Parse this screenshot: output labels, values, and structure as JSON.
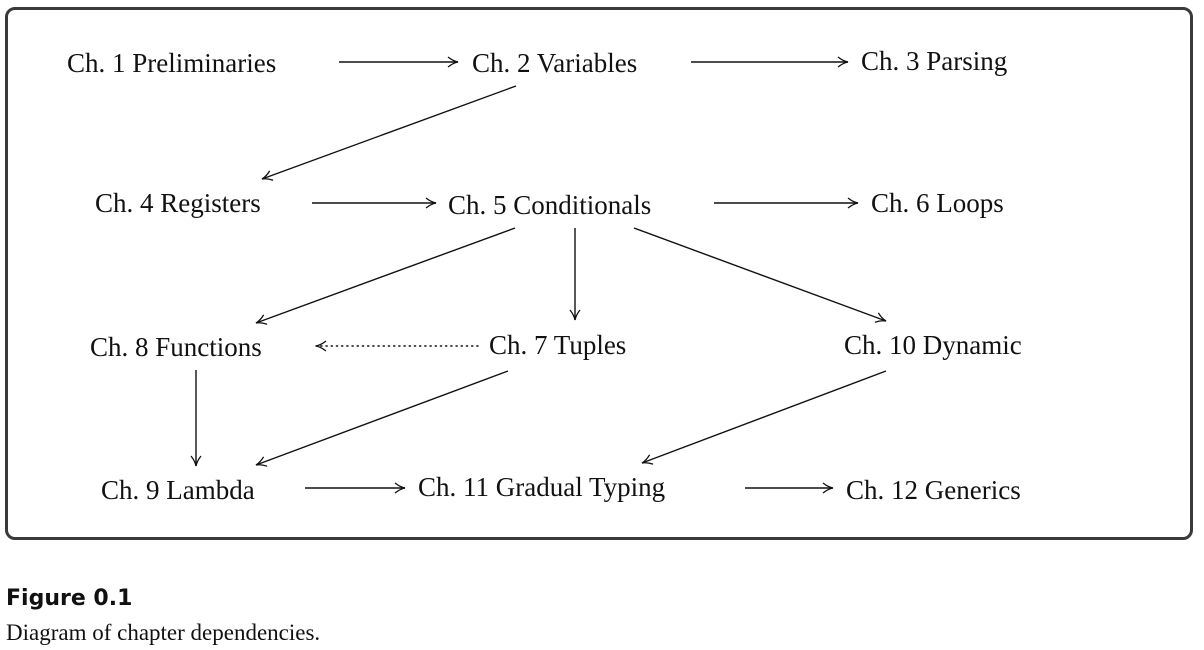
{
  "diagram": {
    "nodes": [
      {
        "id": "ch1",
        "label": "Ch. 1 Preliminaries"
      },
      {
        "id": "ch2",
        "label": "Ch. 2 Variables"
      },
      {
        "id": "ch3",
        "label": "Ch. 3 Parsing"
      },
      {
        "id": "ch4",
        "label": "Ch. 4 Registers"
      },
      {
        "id": "ch5",
        "label": "Ch. 5 Conditionals"
      },
      {
        "id": "ch6",
        "label": "Ch. 6 Loops"
      },
      {
        "id": "ch8",
        "label": "Ch. 8 Functions"
      },
      {
        "id": "ch7",
        "label": "Ch. 7 Tuples"
      },
      {
        "id": "ch10",
        "label": "Ch. 10 Dynamic"
      },
      {
        "id": "ch9",
        "label": "Ch. 9 Lambda"
      },
      {
        "id": "ch11",
        "label": "Ch. 11 Gradual Typing"
      },
      {
        "id": "ch12",
        "label": "Ch. 12 Generics"
      }
    ],
    "edges": [
      {
        "from": "ch1",
        "to": "ch2",
        "style": "solid"
      },
      {
        "from": "ch2",
        "to": "ch3",
        "style": "solid"
      },
      {
        "from": "ch2",
        "to": "ch4",
        "style": "solid"
      },
      {
        "from": "ch4",
        "to": "ch5",
        "style": "solid"
      },
      {
        "from": "ch5",
        "to": "ch6",
        "style": "solid"
      },
      {
        "from": "ch5",
        "to": "ch8",
        "style": "solid"
      },
      {
        "from": "ch5",
        "to": "ch7",
        "style": "solid"
      },
      {
        "from": "ch5",
        "to": "ch10",
        "style": "solid"
      },
      {
        "from": "ch7",
        "to": "ch8",
        "style": "dotted"
      },
      {
        "from": "ch8",
        "to": "ch9",
        "style": "solid"
      },
      {
        "from": "ch7",
        "to": "ch9",
        "style": "solid"
      },
      {
        "from": "ch10",
        "to": "ch11",
        "style": "solid"
      },
      {
        "from": "ch9",
        "to": "ch11",
        "style": "solid"
      },
      {
        "from": "ch11",
        "to": "ch12",
        "style": "solid"
      }
    ]
  },
  "figure": {
    "number": "Figure 0.1",
    "caption": "Diagram of chapter dependencies."
  }
}
